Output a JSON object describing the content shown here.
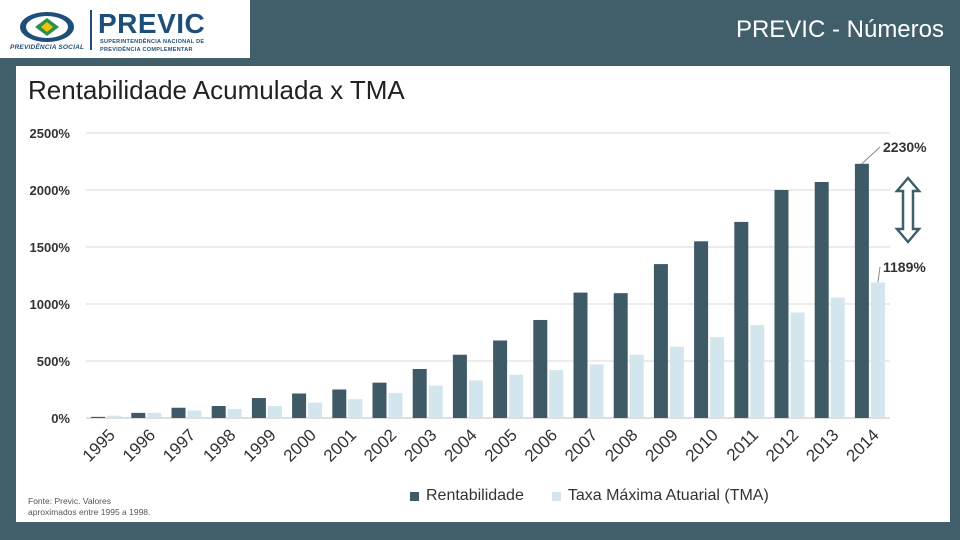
{
  "header": {
    "logo_previc": "PREVIC",
    "logo_previc_sub1": "SUPERINTENDÊNCIA NACIONAL DE",
    "logo_previc_sub2": "PREVIDÊNCIA COMPLEMENTAR",
    "logo_ps": "PREVIDÊNCIA SOCIAL",
    "title": "PREVIC - Números"
  },
  "source_note_line1": "Fonte: Previc. Valores",
  "source_note_line2": "aproximados entre 1995 a 1998.",
  "colors": {
    "band": "#415e6b",
    "rentabilidade": "#3d5a66",
    "tma": "#d3e6ee",
    "arrow": "#415e6b"
  },
  "chart_data": {
    "type": "bar",
    "title": "Rentabilidade Acumulada x TMA",
    "categories": [
      "1995",
      "1996",
      "1997",
      "1998",
      "1999",
      "2000",
      "2001",
      "2002",
      "2003",
      "2004",
      "2005",
      "2006",
      "2007",
      "2008",
      "2009",
      "2010",
      "2011",
      "2012",
      "2013",
      "2014"
    ],
    "series": [
      {
        "name": "Rentabilidade",
        "values": [
          10,
          45,
          90,
          105,
          175,
          215,
          250,
          310,
          430,
          555,
          680,
          860,
          1100,
          1095,
          1350,
          1550,
          1720,
          2000,
          2070,
          2230
        ]
      },
      {
        "name": "Taxa Máxima Atuarial (TMA)",
        "values": [
          20,
          45,
          65,
          80,
          105,
          135,
          165,
          220,
          285,
          330,
          380,
          420,
          470,
          555,
          625,
          710,
          815,
          925,
          1055,
          1189
        ]
      }
    ],
    "ylim": [
      0,
      2500
    ],
    "yticks": [
      0,
      500,
      1000,
      1500,
      2000,
      2500
    ],
    "ytick_labels": [
      "0%",
      "500%",
      "1000%",
      "1500%",
      "2000%",
      "2500%"
    ],
    "annotations": [
      {
        "text": "2230%",
        "series": 0,
        "category": "2014"
      },
      {
        "text": "1189%",
        "series": 1,
        "category": "2014"
      }
    ],
    "grid": true,
    "legend_position": "bottom"
  }
}
